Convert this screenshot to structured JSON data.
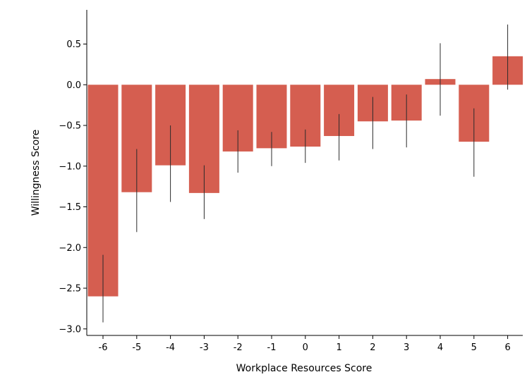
{
  "chart_data": {
    "type": "bar",
    "title": "",
    "xlabel": "Workplace Resources Score",
    "ylabel": "Willingness Score",
    "categories": [
      "-6",
      "-5",
      "-4",
      "-3",
      "-2",
      "-1",
      "0",
      "1",
      "2",
      "3",
      "4",
      "5",
      "6"
    ],
    "values": [
      -2.6,
      -1.32,
      -0.99,
      -1.33,
      -0.82,
      -0.78,
      -0.76,
      -0.63,
      -0.45,
      -0.44,
      0.07,
      -0.7,
      0.35
    ],
    "error_low": [
      -2.92,
      -1.81,
      -1.44,
      -1.65,
      -1.08,
      -1.0,
      -0.96,
      -0.93,
      -0.79,
      -0.77,
      -0.38,
      -1.13,
      -0.06
    ],
    "error_high": [
      -2.09,
      -0.79,
      -0.5,
      -0.99,
      -0.56,
      -0.58,
      -0.55,
      -0.36,
      -0.15,
      -0.12,
      0.51,
      -0.29,
      0.74
    ],
    "ylim": [
      -3.08,
      0.92
    ],
    "yticks": [
      0.5,
      0.0,
      -0.5,
      -1.0,
      -1.5,
      -2.0,
      -2.5,
      -3.0
    ],
    "ytick_labels": [
      "0.5",
      "0.0",
      "−0.5",
      "−1.0",
      "−1.5",
      "−2.0",
      "−2.5",
      "−3.0"
    ],
    "bar_color": "#d55e50",
    "errorbar_color": "#2b2b2b",
    "grid": false,
    "legend": "none"
  }
}
